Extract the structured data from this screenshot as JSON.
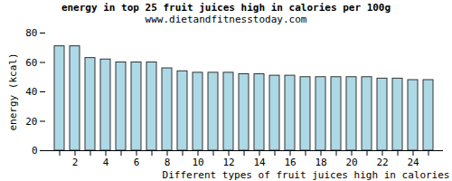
{
  "chart_data": {
    "type": "bar",
    "title": "energy in top 25 fruit juices high in calories per 100g",
    "subtitle": "www.dietandfitnesstoday.com",
    "x_label": "Different types of fruit juices high in calories",
    "y_label": "energy (kcal)",
    "categories": [
      null,
      2,
      null,
      4,
      null,
      6,
      null,
      8,
      null,
      10,
      null,
      12,
      null,
      14,
      null,
      16,
      null,
      18,
      null,
      20,
      null,
      22,
      null,
      24,
      null
    ],
    "values": [
      71,
      71,
      63,
      62,
      60,
      60,
      60,
      56,
      54,
      53,
      53,
      53,
      52,
      52,
      51,
      51,
      50,
      50,
      50,
      50,
      50,
      49,
      49,
      48,
      48
    ],
    "color": "#add8e6",
    "ylim": [
      0,
      80
    ],
    "yticks": [
      0,
      20,
      40,
      60,
      80
    ],
    "grid": false
  }
}
